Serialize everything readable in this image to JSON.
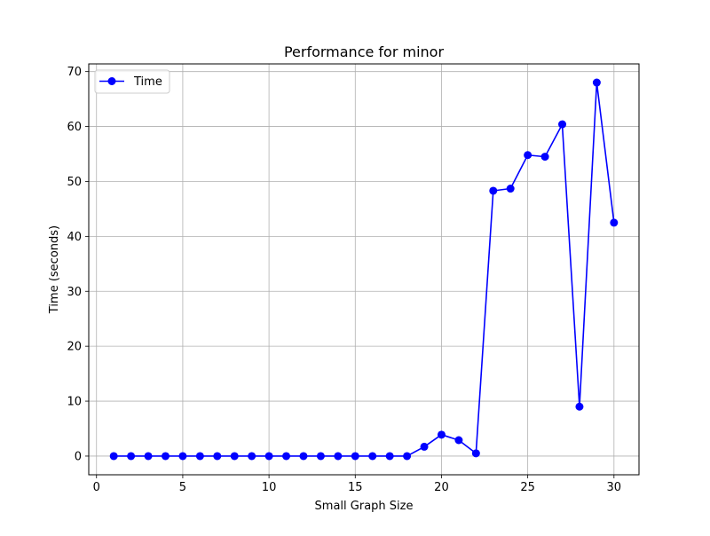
{
  "chart_data": {
    "type": "line",
    "title": "Performance for minor",
    "xlabel": "Small Graph Size",
    "ylabel": "Time (seconds)",
    "xlim": [
      -0.45,
      31.45
    ],
    "ylim": [
      -3.4,
      71.4
    ],
    "xticks": [
      0,
      5,
      10,
      15,
      20,
      25,
      30
    ],
    "yticks": [
      0,
      10,
      20,
      30,
      40,
      50,
      60,
      70
    ],
    "grid": true,
    "legend_position": "top-left",
    "series": [
      {
        "name": "Time",
        "color": "#0000ff",
        "marker": "circle",
        "x": [
          1,
          2,
          3,
          4,
          5,
          6,
          7,
          8,
          9,
          10,
          11,
          12,
          13,
          14,
          15,
          16,
          17,
          18,
          19,
          20,
          21,
          22,
          23,
          24,
          25,
          26,
          27,
          28,
          29,
          30
        ],
        "y": [
          0,
          0,
          0,
          0,
          0,
          0,
          0,
          0,
          0,
          0,
          0,
          0,
          0,
          0,
          0,
          0,
          0,
          0,
          1.7,
          3.9,
          2.9,
          0.5,
          48.3,
          48.7,
          54.8,
          54.5,
          60.4,
          9.0,
          68.0,
          42.5
        ]
      }
    ]
  }
}
